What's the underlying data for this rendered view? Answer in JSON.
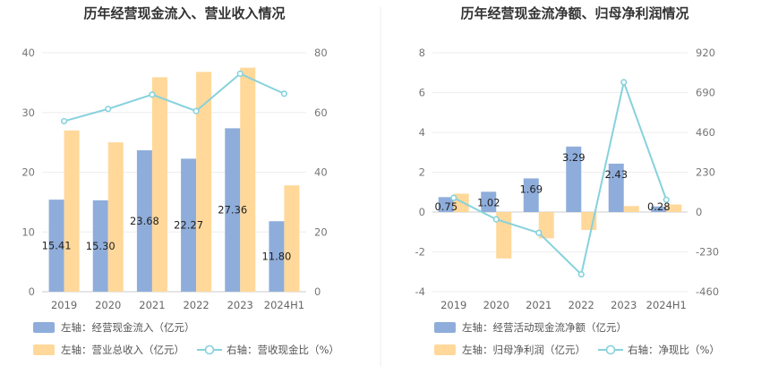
{
  "chart_data": [
    {
      "type": "bar",
      "title": "历年经营现金流入、营业收入情况",
      "categories": [
        "2019",
        "2020",
        "2021",
        "2022",
        "2023",
        "2024H1"
      ],
      "left_axis": {
        "ticks": [
          "0",
          "10",
          "20",
          "30",
          "40"
        ],
        "ylim": [
          0,
          40
        ]
      },
      "right_axis": {
        "ticks": [
          "0",
          "20",
          "40",
          "60",
          "80"
        ],
        "ylim": [
          0,
          80
        ]
      },
      "series": [
        {
          "name": "左轴：经营现金流入（亿元）",
          "axis": "left",
          "kind": "bar",
          "color": "#8eaddb",
          "values": [
            15.41,
            15.3,
            23.68,
            22.27,
            27.36,
            11.8
          ],
          "labels": [
            "15.41",
            "15.30",
            "23.68",
            "22.27",
            "27.36",
            "11.80"
          ]
        },
        {
          "name": "左轴：营业总收入（亿元）",
          "axis": "left",
          "kind": "bar",
          "color": "#ffd89a",
          "values": [
            27.0,
            25.0,
            35.9,
            36.8,
            37.5,
            17.8
          ]
        },
        {
          "name": "右轴：营收现金比（%）",
          "axis": "right",
          "kind": "line",
          "color": "#86d2dc",
          "values": [
            57.1,
            61.2,
            66.0,
            60.5,
            73.0,
            66.3
          ]
        }
      ],
      "legend": "bottom",
      "grid": true
    },
    {
      "type": "bar",
      "title": "历年经营现金流净额、归母净利润情况",
      "categories": [
        "2019",
        "2020",
        "2021",
        "2022",
        "2023",
        "2024H1"
      ],
      "left_axis": {
        "ticks": [
          "-4",
          "-2",
          "0",
          "2",
          "4",
          "6",
          "8"
        ],
        "ylim": [
          -4,
          8
        ]
      },
      "right_axis": {
        "ticks": [
          "-460",
          "-230",
          "0",
          "230",
          "460",
          "690",
          "920"
        ],
        "ylim": [
          -460,
          920
        ]
      },
      "series": [
        {
          "name": "左轴：经营活动现金流净额（亿元）",
          "axis": "left",
          "kind": "bar",
          "color": "#8eaddb",
          "values": [
            0.75,
            1.02,
            1.69,
            3.29,
            2.43,
            0.28
          ],
          "labels": [
            "0.75",
            "1.02",
            "1.69",
            "3.29",
            "2.43",
            "0.28"
          ]
        },
        {
          "name": "左轴：归母净利润（亿元）",
          "axis": "left",
          "kind": "bar",
          "color": "#ffd89a",
          "values": [
            0.92,
            -2.33,
            -1.32,
            -0.9,
            0.3,
            0.38
          ]
        },
        {
          "name": "右轴：净现比（%）",
          "axis": "right",
          "kind": "line",
          "color": "#86d2dc",
          "values": [
            82,
            -42,
            -120,
            -360,
            750,
            71
          ]
        }
      ],
      "legend": "bottom",
      "grid": true
    }
  ]
}
